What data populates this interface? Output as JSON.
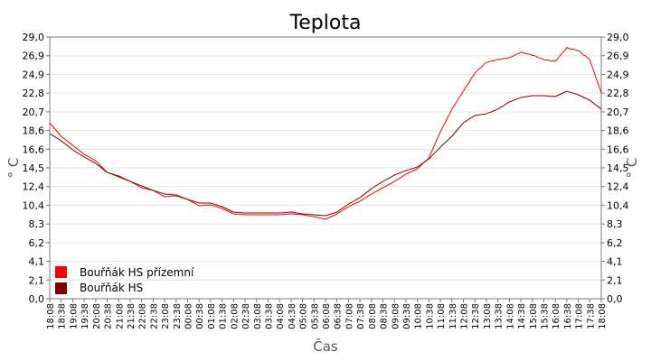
{
  "chart_data": {
    "type": "line",
    "title": "Teplota",
    "xlabel": "Čas",
    "ylabel": "° C",
    "ylim": [
      0,
      29
    ],
    "y_ticks": [
      "0,0",
      "2,1",
      "4,1",
      "6,2",
      "8,3",
      "10,4",
      "12,4",
      "14,5",
      "16,6",
      "18,6",
      "20,7",
      "22,8",
      "24,9",
      "26,9",
      "29,0"
    ],
    "x_ticks": [
      "18:08",
      "18:38",
      "19:08",
      "19:38",
      "20:08",
      "20:38",
      "21:08",
      "21:38",
      "22:08",
      "22:38",
      "23:08",
      "23:38",
      "00:08",
      "00:38",
      "01:08",
      "01:38",
      "02:08",
      "02:38",
      "03:08",
      "03:38",
      "04:08",
      "04:38",
      "05:08",
      "05:38",
      "06:08",
      "06:38",
      "07:08",
      "07:38",
      "08:08",
      "08:38",
      "09:08",
      "09:38",
      "10:08",
      "10:38",
      "11:08",
      "11:38",
      "12:08",
      "12:38",
      "13:08",
      "13:38",
      "14:08",
      "14:38",
      "15:08",
      "15:38",
      "16:08",
      "16:38",
      "17:08",
      "17:38",
      "18:08"
    ],
    "grid": true,
    "legend_position": "bottom-left",
    "series": [
      {
        "name": "Bouřňák HS přízemní",
        "color": "#ff0000",
        "values": [
          19.5,
          18.0,
          17.0,
          16.0,
          15.3,
          14.0,
          13.5,
          13.0,
          12.3,
          12.0,
          11.3,
          11.4,
          11.0,
          10.3,
          10.4,
          10.0,
          9.4,
          9.3,
          9.3,
          9.3,
          9.3,
          9.4,
          9.3,
          9.1,
          8.8,
          9.4,
          10.2,
          10.8,
          11.6,
          12.3,
          13.0,
          13.8,
          14.4,
          15.6,
          18.5,
          21.0,
          23.0,
          25.0,
          26.2,
          26.5,
          26.7,
          27.3,
          27.0,
          26.5,
          26.3,
          27.8,
          27.5,
          26.5,
          22.8
        ]
      },
      {
        "name": "Bouřňák HS",
        "color": "#800000",
        "values": [
          18.3,
          17.5,
          16.5,
          15.7,
          15.0,
          14.0,
          13.6,
          13.0,
          12.5,
          12.0,
          11.6,
          11.5,
          11.0,
          10.6,
          10.6,
          10.2,
          9.6,
          9.5,
          9.5,
          9.5,
          9.5,
          9.6,
          9.4,
          9.3,
          9.2,
          9.6,
          10.5,
          11.2,
          12.2,
          13.0,
          13.7,
          14.2,
          14.6,
          15.5,
          16.8,
          18.0,
          19.5,
          20.3,
          20.5,
          21.0,
          21.8,
          22.3,
          22.5,
          22.5,
          22.4,
          23.0,
          22.6,
          22.0,
          21.0
        ]
      }
    ]
  }
}
